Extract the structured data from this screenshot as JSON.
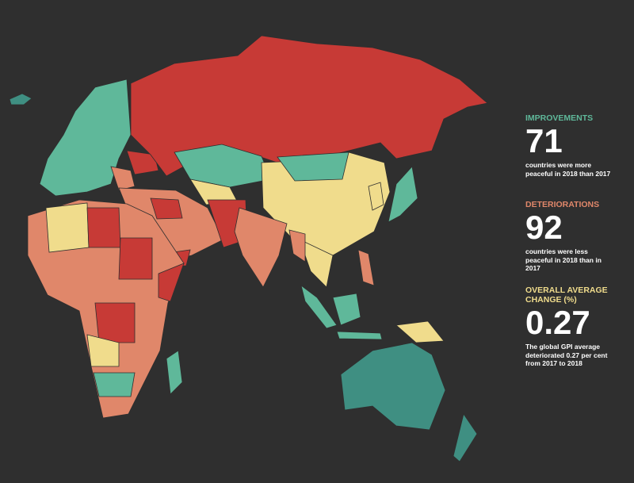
{
  "stats": [
    {
      "heading": "IMPROVEMENTS",
      "value": 71,
      "description": "countries were more peaceful in 2018 than 2017"
    },
    {
      "heading": "DETERIORATIONS",
      "value": 92,
      "description": "countries were less peaceful in 2018 than in 2017"
    },
    {
      "heading": "OVERALL AVERAGE CHANGE (%)",
      "value": 0.27,
      "description": "The global GPI average deteriorated 0.27 per cent from 2017 to 2018"
    }
  ]
}
